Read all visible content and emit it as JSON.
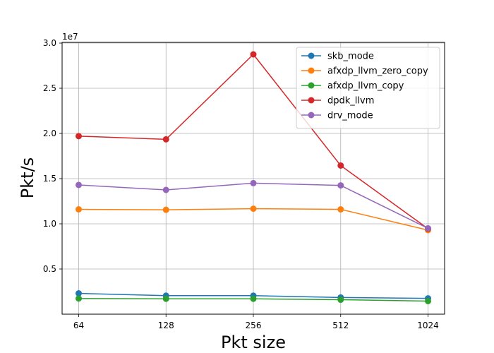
{
  "chart_data": {
    "type": "line",
    "title": "",
    "xlabel": "Pkt size",
    "ylabel": "Pkt/s",
    "y_offset_label": "1e7",
    "categories": [
      "64",
      "128",
      "256",
      "512",
      "1024"
    ],
    "yticks": [
      0.5,
      1.0,
      1.5,
      2.0,
      2.5,
      3.0
    ],
    "ytick_labels": [
      "0.5",
      "1.0",
      "1.5",
      "2.0",
      "2.5",
      "3.0"
    ],
    "ylim": [
      0.0,
      3.0
    ],
    "grid": true,
    "legend_position": "top-right",
    "series": [
      {
        "name": "skb_mode",
        "color": "#1f77b4",
        "values": [
          0.23,
          0.205,
          0.205,
          0.185,
          0.175
        ]
      },
      {
        "name": "afxdp_llvm_zero_copy",
        "color": "#ff7f0e",
        "values": [
          1.16,
          1.155,
          1.167,
          1.16,
          0.93
        ]
      },
      {
        "name": "afxdp_llvm_copy",
        "color": "#2ca02c",
        "values": [
          0.173,
          0.17,
          0.17,
          0.16,
          0.145
        ]
      },
      {
        "name": "dpdk_llvm",
        "color": "#d62728",
        "values": [
          1.97,
          1.935,
          2.875,
          1.645,
          0.945
        ]
      },
      {
        "name": "drv_mode",
        "color": "#9467bd",
        "values": [
          1.43,
          1.375,
          1.45,
          1.425,
          0.95
        ]
      }
    ]
  }
}
